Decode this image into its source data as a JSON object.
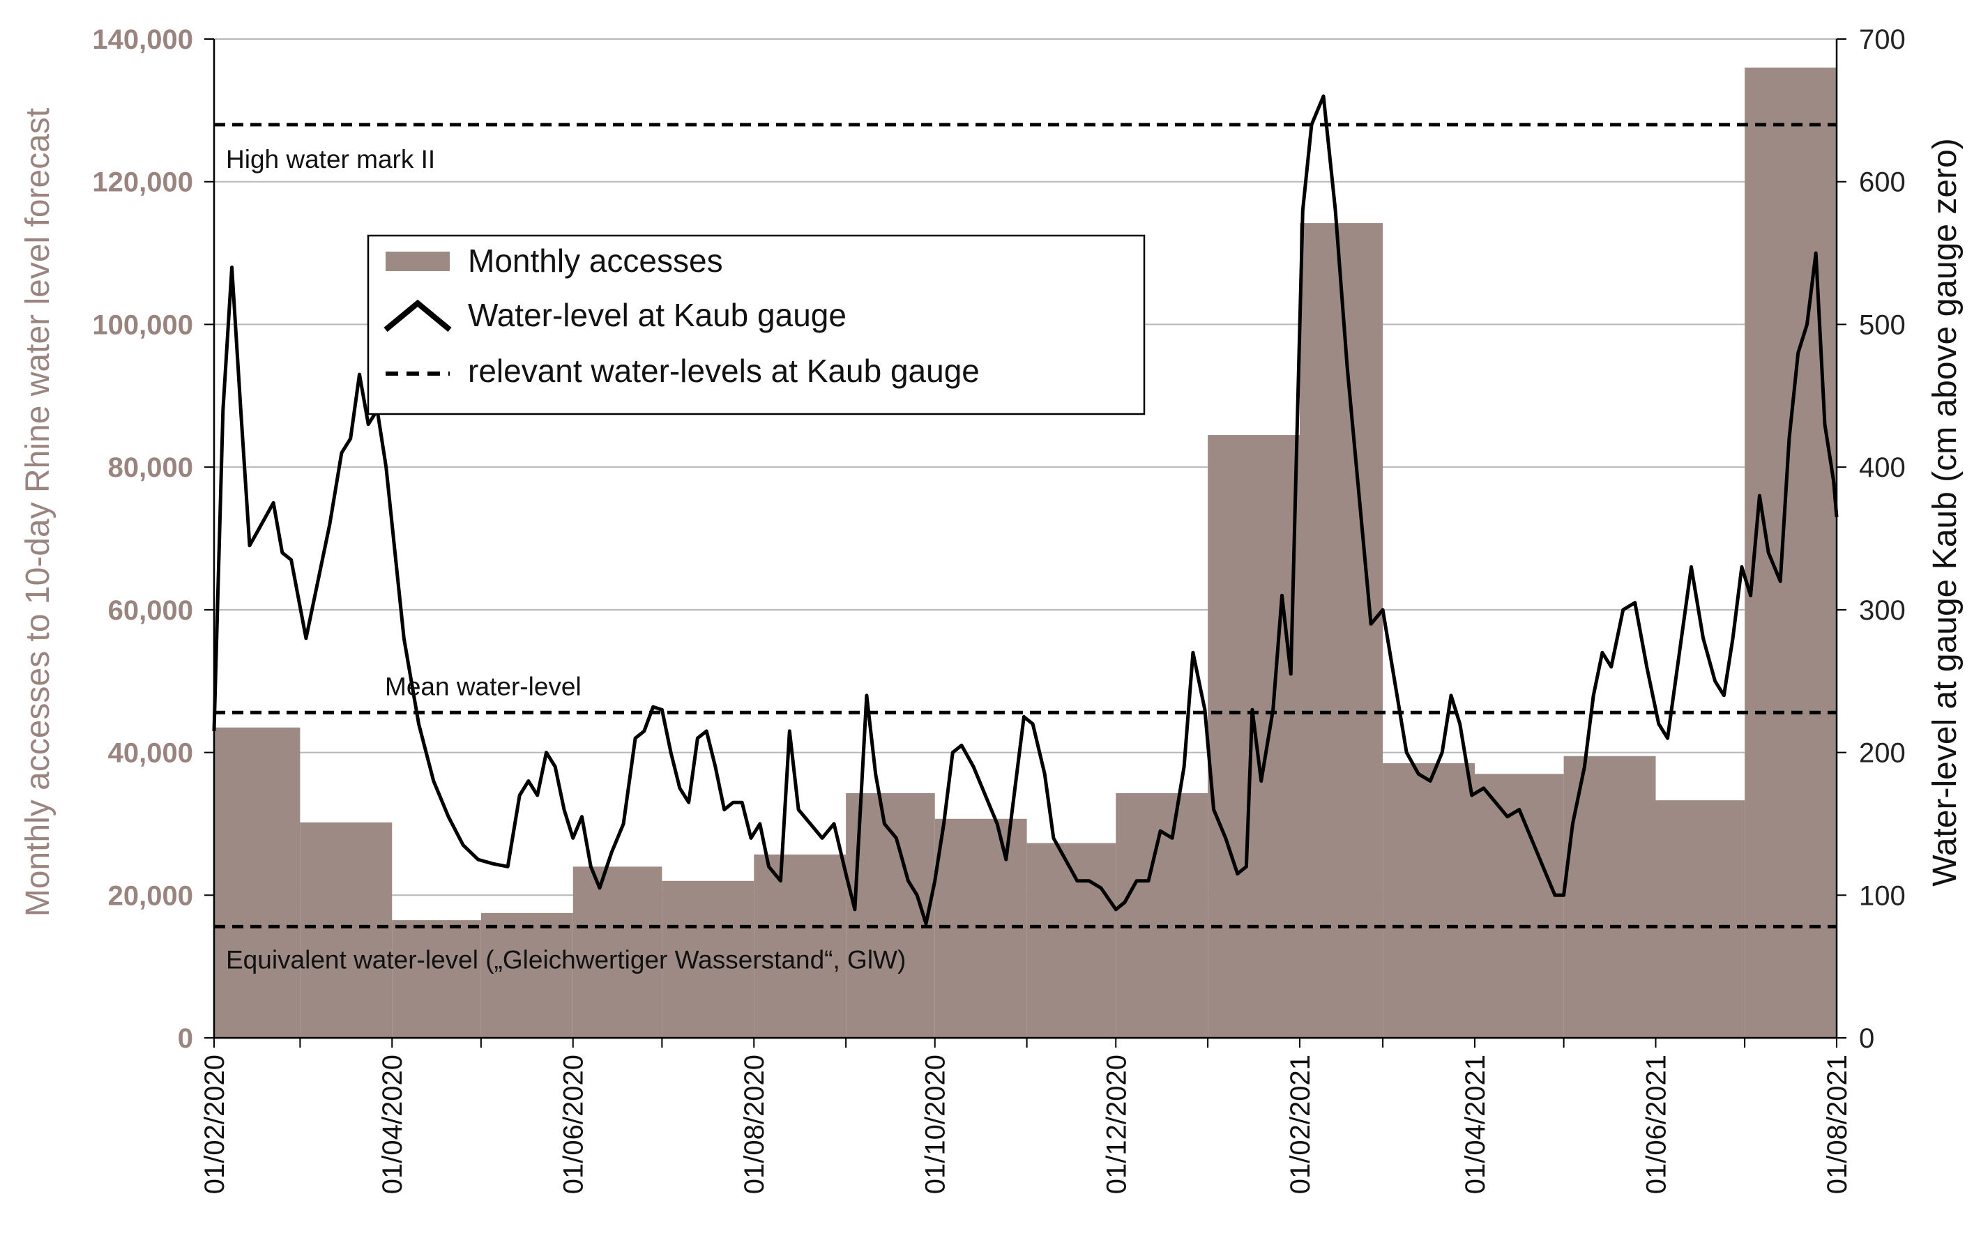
{
  "chart_data": {
    "type": "bar",
    "x_ticks": [
      "01/02/2020",
      "01/04/2020",
      "01/06/2020",
      "01/08/2020",
      "01/10/2020",
      "01/12/2020",
      "01/02/2021",
      "01/04/2021",
      "01/06/2021",
      "01/08/2021"
    ],
    "xlim": [
      "2020-02-01",
      "2021-08-01"
    ],
    "y_left": {
      "label": "Monthly accesses to 10-day Rhine water level forecast",
      "lim": [
        0,
        140000
      ],
      "ticks": [
        "0",
        "20,000",
        "40,000",
        "60,000",
        "80,000",
        "100,000",
        "120,000",
        "140,000"
      ],
      "tick_values": [
        0,
        20000,
        40000,
        60000,
        80000,
        100000,
        120000,
        140000
      ],
      "color": "#9a8480"
    },
    "y_right": {
      "label": "Water-level at gauge Kaub (cm above gauge zero)",
      "lim": [
        0,
        700
      ],
      "ticks": [
        "0",
        "100",
        "200",
        "300",
        "400",
        "500",
        "600",
        "700"
      ],
      "tick_values": [
        0,
        100,
        200,
        300,
        400,
        500,
        600,
        700
      ]
    },
    "grid": true,
    "series": [
      {
        "name": "Monthly accesses",
        "kind": "bar",
        "axis": "left",
        "color": "#9e8a84",
        "bars": [
          {
            "start": "2020-02-01",
            "end": "2020-03-01",
            "value": 43500
          },
          {
            "start": "2020-03-01",
            "end": "2020-04-01",
            "value": 30200
          },
          {
            "start": "2020-04-01",
            "end": "2020-05-01",
            "value": 16500
          },
          {
            "start": "2020-05-01",
            "end": "2020-06-01",
            "value": 17500
          },
          {
            "start": "2020-06-01",
            "end": "2020-07-01",
            "value": 24000
          },
          {
            "start": "2020-07-01",
            "end": "2020-08-01",
            "value": 22000
          },
          {
            "start": "2020-08-01",
            "end": "2020-09-01",
            "value": 25700
          },
          {
            "start": "2020-09-01",
            "end": "2020-10-01",
            "value": 34300
          },
          {
            "start": "2020-10-01",
            "end": "2020-11-01",
            "value": 30700
          },
          {
            "start": "2020-11-01",
            "end": "2020-12-01",
            "value": 27300
          },
          {
            "start": "2020-12-01",
            "end": "2021-01-01",
            "value": 34300
          },
          {
            "start": "2021-01-01",
            "end": "2021-02-01",
            "value": 84500
          },
          {
            "start": "2021-02-01",
            "end": "2021-03-01",
            "value": 114200
          },
          {
            "start": "2021-03-01",
            "end": "2021-04-01",
            "value": 38500
          },
          {
            "start": "2021-04-01",
            "end": "2021-05-01",
            "value": 37000
          },
          {
            "start": "2021-05-01",
            "end": "2021-06-01",
            "value": 39500
          },
          {
            "start": "2021-06-01",
            "end": "2021-07-01",
            "value": 33300
          },
          {
            "start": "2021-07-01",
            "end": "2021-08-01",
            "value": 136000
          }
        ]
      },
      {
        "name": "Water-level at Kaub gauge",
        "kind": "line",
        "axis": "right",
        "color": "#000000",
        "points": [
          [
            "2020-02-01",
            215
          ],
          [
            "2020-02-04",
            440
          ],
          [
            "2020-02-07",
            540
          ],
          [
            "2020-02-10",
            440
          ],
          [
            "2020-02-13",
            345
          ],
          [
            "2020-02-17",
            360
          ],
          [
            "2020-02-21",
            375
          ],
          [
            "2020-02-24",
            340
          ],
          [
            "2020-02-27",
            335
          ],
          [
            "2020-03-03",
            280
          ],
          [
            "2020-03-07",
            320
          ],
          [
            "2020-03-11",
            360
          ],
          [
            "2020-03-15",
            410
          ],
          [
            "2020-03-18",
            420
          ],
          [
            "2020-03-21",
            465
          ],
          [
            "2020-03-24",
            430
          ],
          [
            "2020-03-27",
            440
          ],
          [
            "2020-03-30",
            400
          ],
          [
            "2020-04-02",
            340
          ],
          [
            "2020-04-05",
            280
          ],
          [
            "2020-04-10",
            220
          ],
          [
            "2020-04-15",
            180
          ],
          [
            "2020-04-20",
            155
          ],
          [
            "2020-04-25",
            135
          ],
          [
            "2020-04-30",
            125
          ],
          [
            "2020-05-05",
            122
          ],
          [
            "2020-05-10",
            120
          ],
          [
            "2020-05-14",
            170
          ],
          [
            "2020-05-17",
            180
          ],
          [
            "2020-05-20",
            170
          ],
          [
            "2020-05-23",
            200
          ],
          [
            "2020-05-26",
            190
          ],
          [
            "2020-05-29",
            160
          ],
          [
            "2020-06-01",
            140
          ],
          [
            "2020-06-04",
            155
          ],
          [
            "2020-06-07",
            120
          ],
          [
            "2020-06-10",
            105
          ],
          [
            "2020-06-14",
            130
          ],
          [
            "2020-06-18",
            150
          ],
          [
            "2020-06-22",
            210
          ],
          [
            "2020-06-25",
            215
          ],
          [
            "2020-06-28",
            232
          ],
          [
            "2020-07-01",
            230
          ],
          [
            "2020-07-04",
            200
          ],
          [
            "2020-07-07",
            175
          ],
          [
            "2020-07-10",
            165
          ],
          [
            "2020-07-13",
            210
          ],
          [
            "2020-07-16",
            215
          ],
          [
            "2020-07-19",
            190
          ],
          [
            "2020-07-22",
            160
          ],
          [
            "2020-07-25",
            165
          ],
          [
            "2020-07-28",
            165
          ],
          [
            "2020-07-31",
            140
          ],
          [
            "2020-08-03",
            150
          ],
          [
            "2020-08-06",
            120
          ],
          [
            "2020-08-10",
            110
          ],
          [
            "2020-08-13",
            215
          ],
          [
            "2020-08-16",
            160
          ],
          [
            "2020-08-20",
            150
          ],
          [
            "2020-08-24",
            140
          ],
          [
            "2020-08-28",
            150
          ],
          [
            "2020-09-01",
            115
          ],
          [
            "2020-09-04",
            90
          ],
          [
            "2020-09-08",
            240
          ],
          [
            "2020-09-11",
            185
          ],
          [
            "2020-09-14",
            150
          ],
          [
            "2020-09-18",
            140
          ],
          [
            "2020-09-22",
            110
          ],
          [
            "2020-09-25",
            100
          ],
          [
            "2020-09-28",
            80
          ],
          [
            "2020-10-01",
            110
          ],
          [
            "2020-10-04",
            150
          ],
          [
            "2020-10-07",
            200
          ],
          [
            "2020-10-10",
            205
          ],
          [
            "2020-10-14",
            190
          ],
          [
            "2020-10-18",
            170
          ],
          [
            "2020-10-22",
            150
          ],
          [
            "2020-10-25",
            125
          ],
          [
            "2020-10-28",
            175
          ],
          [
            "2020-10-31",
            225
          ],
          [
            "2020-11-03",
            220
          ],
          [
            "2020-11-07",
            185
          ],
          [
            "2020-11-10",
            140
          ],
          [
            "2020-11-14",
            125
          ],
          [
            "2020-11-18",
            110
          ],
          [
            "2020-11-22",
            110
          ],
          [
            "2020-11-26",
            105
          ],
          [
            "2020-12-01",
            90
          ],
          [
            "2020-12-04",
            95
          ],
          [
            "2020-12-08",
            110
          ],
          [
            "2020-12-12",
            110
          ],
          [
            "2020-12-16",
            145
          ],
          [
            "2020-12-20",
            140
          ],
          [
            "2020-12-24",
            190
          ],
          [
            "2020-12-27",
            270
          ],
          [
            "2020-12-31",
            230
          ],
          [
            "2021-01-03",
            160
          ],
          [
            "2021-01-07",
            140
          ],
          [
            "2021-01-11",
            115
          ],
          [
            "2021-01-14",
            120
          ],
          [
            "2021-01-16",
            230
          ],
          [
            "2021-01-19",
            180
          ],
          [
            "2021-01-23",
            230
          ],
          [
            "2021-01-26",
            310
          ],
          [
            "2021-01-29",
            255
          ],
          [
            "2021-02-02",
            580
          ],
          [
            "2021-02-05",
            640
          ],
          [
            "2021-02-09",
            660
          ],
          [
            "2021-02-13",
            580
          ],
          [
            "2021-02-17",
            470
          ],
          [
            "2021-02-21",
            380
          ],
          [
            "2021-02-25",
            290
          ],
          [
            "2021-03-01",
            300
          ],
          [
            "2021-03-05",
            250
          ],
          [
            "2021-03-09",
            200
          ],
          [
            "2021-03-13",
            185
          ],
          [
            "2021-03-17",
            180
          ],
          [
            "2021-03-21",
            200
          ],
          [
            "2021-03-24",
            240
          ],
          [
            "2021-03-27",
            220
          ],
          [
            "2021-03-31",
            170
          ],
          [
            "2021-04-04",
            175
          ],
          [
            "2021-04-08",
            165
          ],
          [
            "2021-04-12",
            155
          ],
          [
            "2021-04-16",
            160
          ],
          [
            "2021-04-20",
            140
          ],
          [
            "2021-04-24",
            120
          ],
          [
            "2021-04-28",
            100
          ],
          [
            "2021-05-01",
            100
          ],
          [
            "2021-05-04",
            150
          ],
          [
            "2021-05-08",
            190
          ],
          [
            "2021-05-11",
            240
          ],
          [
            "2021-05-14",
            270
          ],
          [
            "2021-05-17",
            260
          ],
          [
            "2021-05-21",
            300
          ],
          [
            "2021-05-25",
            305
          ],
          [
            "2021-05-29",
            260
          ],
          [
            "2021-06-02",
            220
          ],
          [
            "2021-06-05",
            210
          ],
          [
            "2021-06-09",
            270
          ],
          [
            "2021-06-13",
            330
          ],
          [
            "2021-06-17",
            280
          ],
          [
            "2021-06-21",
            250
          ],
          [
            "2021-06-24",
            240
          ],
          [
            "2021-06-27",
            280
          ],
          [
            "2021-06-30",
            330
          ],
          [
            "2021-07-03",
            310
          ],
          [
            "2021-07-06",
            380
          ],
          [
            "2021-07-09",
            340
          ],
          [
            "2021-07-13",
            320
          ],
          [
            "2021-07-16",
            420
          ],
          [
            "2021-07-19",
            480
          ],
          [
            "2021-07-22",
            500
          ],
          [
            "2021-07-25",
            550
          ],
          [
            "2021-07-28",
            430
          ],
          [
            "2021-07-31",
            390
          ],
          [
            "2021-08-01",
            365
          ]
        ]
      },
      {
        "name": "relevant water-levels at Kaub gauge",
        "kind": "reference-lines",
        "axis": "right",
        "color": "#000000",
        "lines": [
          {
            "label": "High water mark II",
            "value": 640
          },
          {
            "label": "Mean water-level",
            "value": 228
          },
          {
            "label": "Equivalent water-level („Gleichwertiger Wasserstand“, GlW)",
            "value": 78
          }
        ]
      }
    ],
    "legend": {
      "placement": "upper-center",
      "items": [
        "Monthly accesses",
        "Water-level at Kaub gauge",
        "relevant water-levels at Kaub gauge"
      ]
    }
  }
}
